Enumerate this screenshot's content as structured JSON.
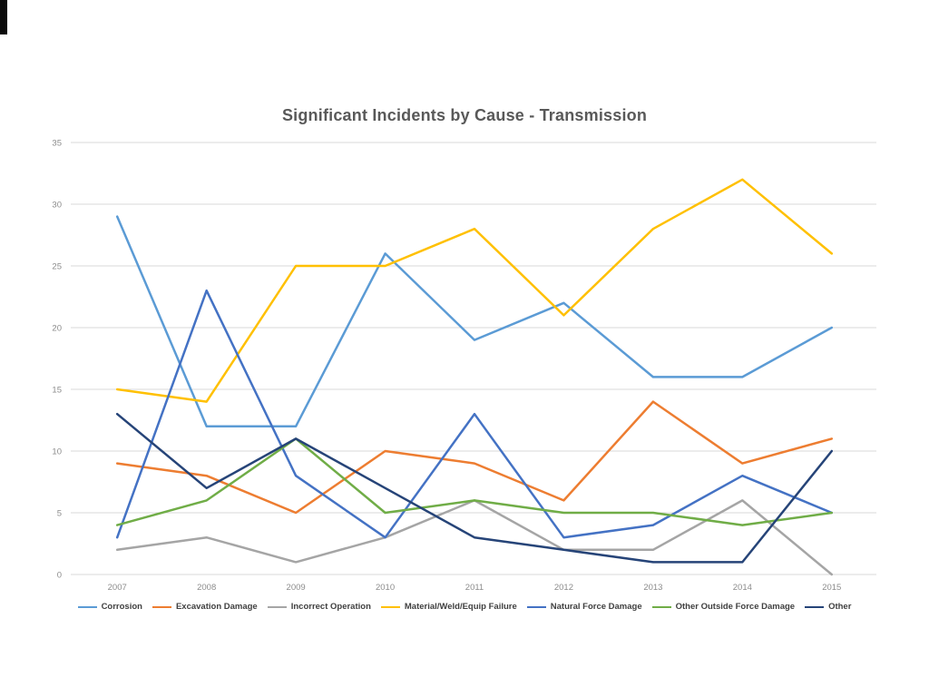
{
  "page": {
    "background": "#ffffff"
  },
  "chart_data": {
    "type": "line",
    "title": "Significant Incidents by Cause - Transmission",
    "categories": [
      "2007",
      "2008",
      "2009",
      "2010",
      "2011",
      "2012",
      "2013",
      "2014",
      "2015"
    ],
    "series": [
      {
        "name": "Corrosion",
        "color": "#5B9BD5",
        "values": [
          29,
          12,
          12,
          26,
          19,
          22,
          16,
          16,
          20
        ]
      },
      {
        "name": "Excavation Damage",
        "color": "#ED7D31",
        "values": [
          9,
          8,
          5,
          10,
          9,
          6,
          14,
          9,
          11
        ]
      },
      {
        "name": "Incorrect Operation",
        "color": "#A5A5A5",
        "values": [
          2,
          3,
          1,
          3,
          6,
          2,
          2,
          6,
          0
        ]
      },
      {
        "name": "Material/Weld/Equip Failure",
        "color": "#FFC000",
        "values": [
          15,
          14,
          25,
          25,
          28,
          21,
          28,
          32,
          26
        ]
      },
      {
        "name": "Natural Force Damage",
        "color": "#4472C4",
        "values": [
          3,
          23,
          8,
          3,
          13,
          3,
          4,
          8,
          5
        ]
      },
      {
        "name": "Other Outside Force Damage",
        "color": "#70AD47",
        "values": [
          4,
          6,
          11,
          5,
          6,
          5,
          5,
          4,
          5
        ]
      },
      {
        "name": "Other",
        "color": "#264478",
        "values": [
          13,
          7,
          11,
          7,
          3,
          2,
          1,
          1,
          10
        ]
      }
    ],
    "xlabel": "",
    "ylabel": "",
    "ylim": [
      0,
      35
    ],
    "ytick_step": 5,
    "yticks": [
      0,
      5,
      10,
      15,
      20,
      25,
      30,
      35
    ],
    "grid": "horizontal",
    "gridline_color": "#D9D9D9",
    "tick_label_color": "#8c8c8c",
    "title_color": "#595959",
    "legend_position": "bottom"
  }
}
